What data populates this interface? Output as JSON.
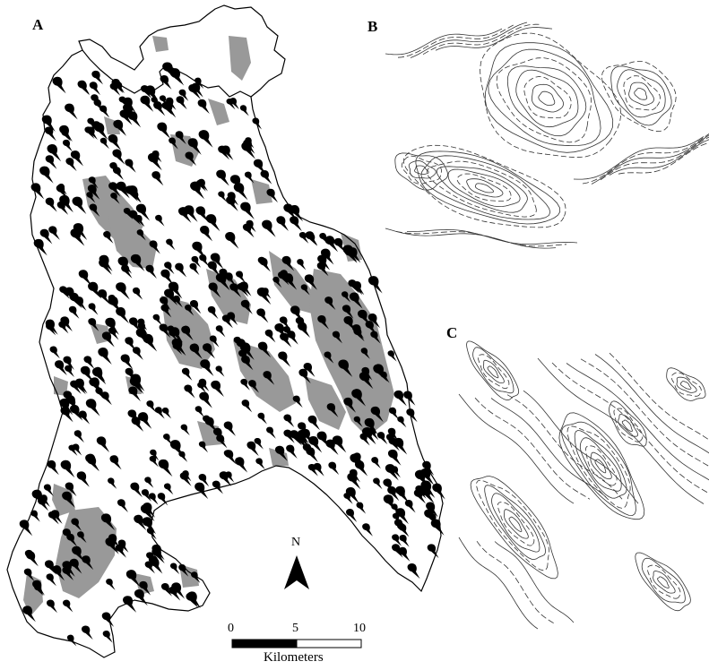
{
  "panels": {
    "a": {
      "label": "A"
    },
    "b": {
      "label": "B"
    },
    "c": {
      "label": "C"
    }
  },
  "north_arrow": {
    "label": "N"
  },
  "scale_bar": {
    "ticks": [
      "0",
      "5",
      "10"
    ],
    "unit": "Kilometers"
  },
  "colors": {
    "boundary": "#000000",
    "lakes": "#999999",
    "drumlins": "#000000",
    "contours": "#333333"
  }
}
